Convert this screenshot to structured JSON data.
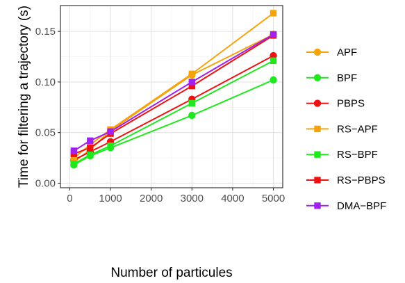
{
  "chart_data": {
    "type": "line",
    "xlabel": "Number of particules",
    "ylabel": "Time for filtering a trajectory (s)",
    "xlim": [
      -230,
      5230
    ],
    "ylim": [
      -0.0045,
      0.1755
    ],
    "x_ticks": [
      0,
      1000,
      2000,
      3000,
      4000,
      5000
    ],
    "x_tick_labels": [
      "0",
      "1000",
      "2000",
      "3000",
      "4000",
      "5000"
    ],
    "y_ticks": [
      0.0,
      0.05,
      0.1,
      0.15
    ],
    "y_tick_labels": [
      "0.00",
      "0.05",
      "0.10",
      "0.15"
    ],
    "grid": true,
    "legend_position": "right",
    "x": [
      100,
      500,
      1000,
      3000,
      5000
    ],
    "series": [
      {
        "name": "APF",
        "color": "#F5A30A",
        "marker": "circle",
        "values": [
          0.021,
          0.033,
          0.052,
          0.107,
          0.147
        ]
      },
      {
        "name": "BPF",
        "color": "#1FE81F",
        "marker": "circle",
        "values": [
          0.018,
          0.027,
          0.035,
          0.067,
          0.102
        ]
      },
      {
        "name": "PBPS",
        "color": "#EE1111",
        "marker": "circle",
        "values": [
          0.023,
          0.031,
          0.041,
          0.083,
          0.126
        ]
      },
      {
        "name": "RS−APF",
        "color": "#F5A30A",
        "marker": "square",
        "values": [
          0.025,
          0.038,
          0.053,
          0.108,
          0.168
        ]
      },
      {
        "name": "RS−BPF",
        "color": "#1FE81F",
        "marker": "square",
        "values": [
          0.019,
          0.028,
          0.037,
          0.079,
          0.121
        ]
      },
      {
        "name": "RS−PBPS",
        "color": "#EE1111",
        "marker": "square",
        "values": [
          0.029,
          0.035,
          0.049,
          0.096,
          0.146
        ]
      },
      {
        "name": "DMA−BPF",
        "color": "#A020F0",
        "marker": "square",
        "values": [
          0.032,
          0.042,
          0.051,
          0.1,
          0.147
        ]
      }
    ]
  }
}
